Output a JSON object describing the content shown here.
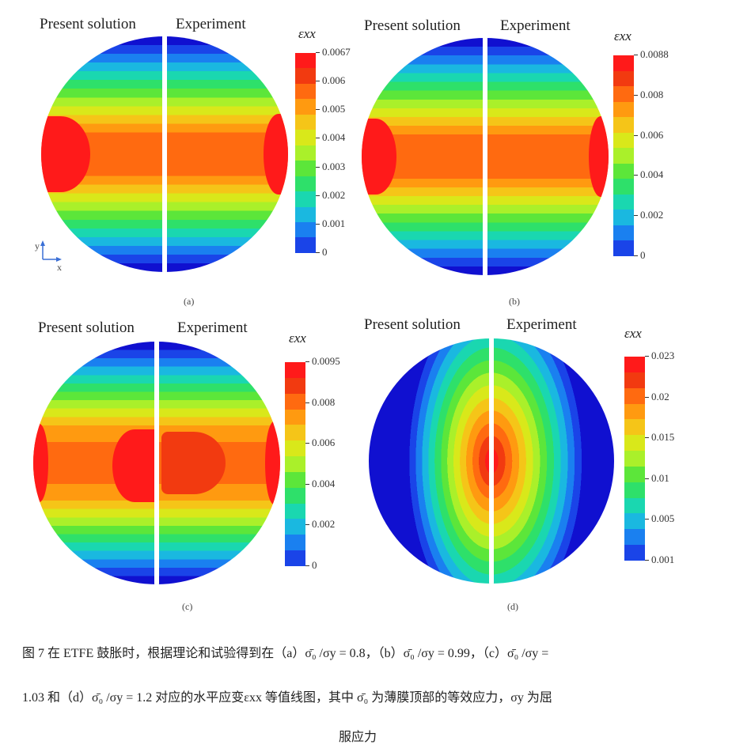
{
  "panels": [
    {
      "id": "a",
      "label": "(a)",
      "left_title": "Present solution",
      "right_title": "Experiment",
      "colorbar_title": "εxx",
      "ticks": [
        "0.0067",
        "0.006",
        "0.005",
        "0.004",
        "0.003",
        "0.002",
        "0.001",
        "0"
      ],
      "axis_y": "y",
      "axis_x": "x"
    },
    {
      "id": "b",
      "label": "(b)",
      "left_title": "Present solution",
      "right_title": "Experiment",
      "colorbar_title": "εxx",
      "ticks": [
        "0.0088",
        "0.008",
        "0.006",
        "0.004",
        "0.002",
        "0"
      ]
    },
    {
      "id": "c",
      "label": "(c)",
      "left_title": "Present solution",
      "right_title": "Experiment",
      "colorbar_title": "εxx",
      "ticks": [
        "0.0095",
        "0.008",
        "0.006",
        "0.004",
        "0.002",
        "0"
      ]
    },
    {
      "id": "d",
      "label": "(d)",
      "left_title": "Present solution",
      "right_title": "Experiment",
      "colorbar_title": "εxx",
      "ticks": [
        "0.023",
        "0.02",
        "0.015",
        "0.01",
        "0.005",
        "0.001"
      ]
    }
  ],
  "colormap": [
    "#ff1a1a",
    "#f23a10",
    "#ff6a10",
    "#ff9a10",
    "#f5c518",
    "#d9e81a",
    "#aaf02a",
    "#5ce63a",
    "#2ee06a",
    "#1ad7b0",
    "#1ab8e0",
    "#1a80f0",
    "#1a44e8",
    "#1010d0"
  ],
  "caption": {
    "line1": "图 7  在 ETFE 鼓胀时，根据理论和试验得到在（a）σ̄₀ /σy = 0.8，（b）σ̄₀ /σy = 0.99，（c）σ̄₀ /σy =",
    "line2": "1.03 和（d）σ̄₀ /σy = 1.2 对应的水平应变εxx 等值线图，其中 σ̄₀ 为薄膜顶部的等效应力，σy 为屈",
    "line3": "服应力"
  }
}
